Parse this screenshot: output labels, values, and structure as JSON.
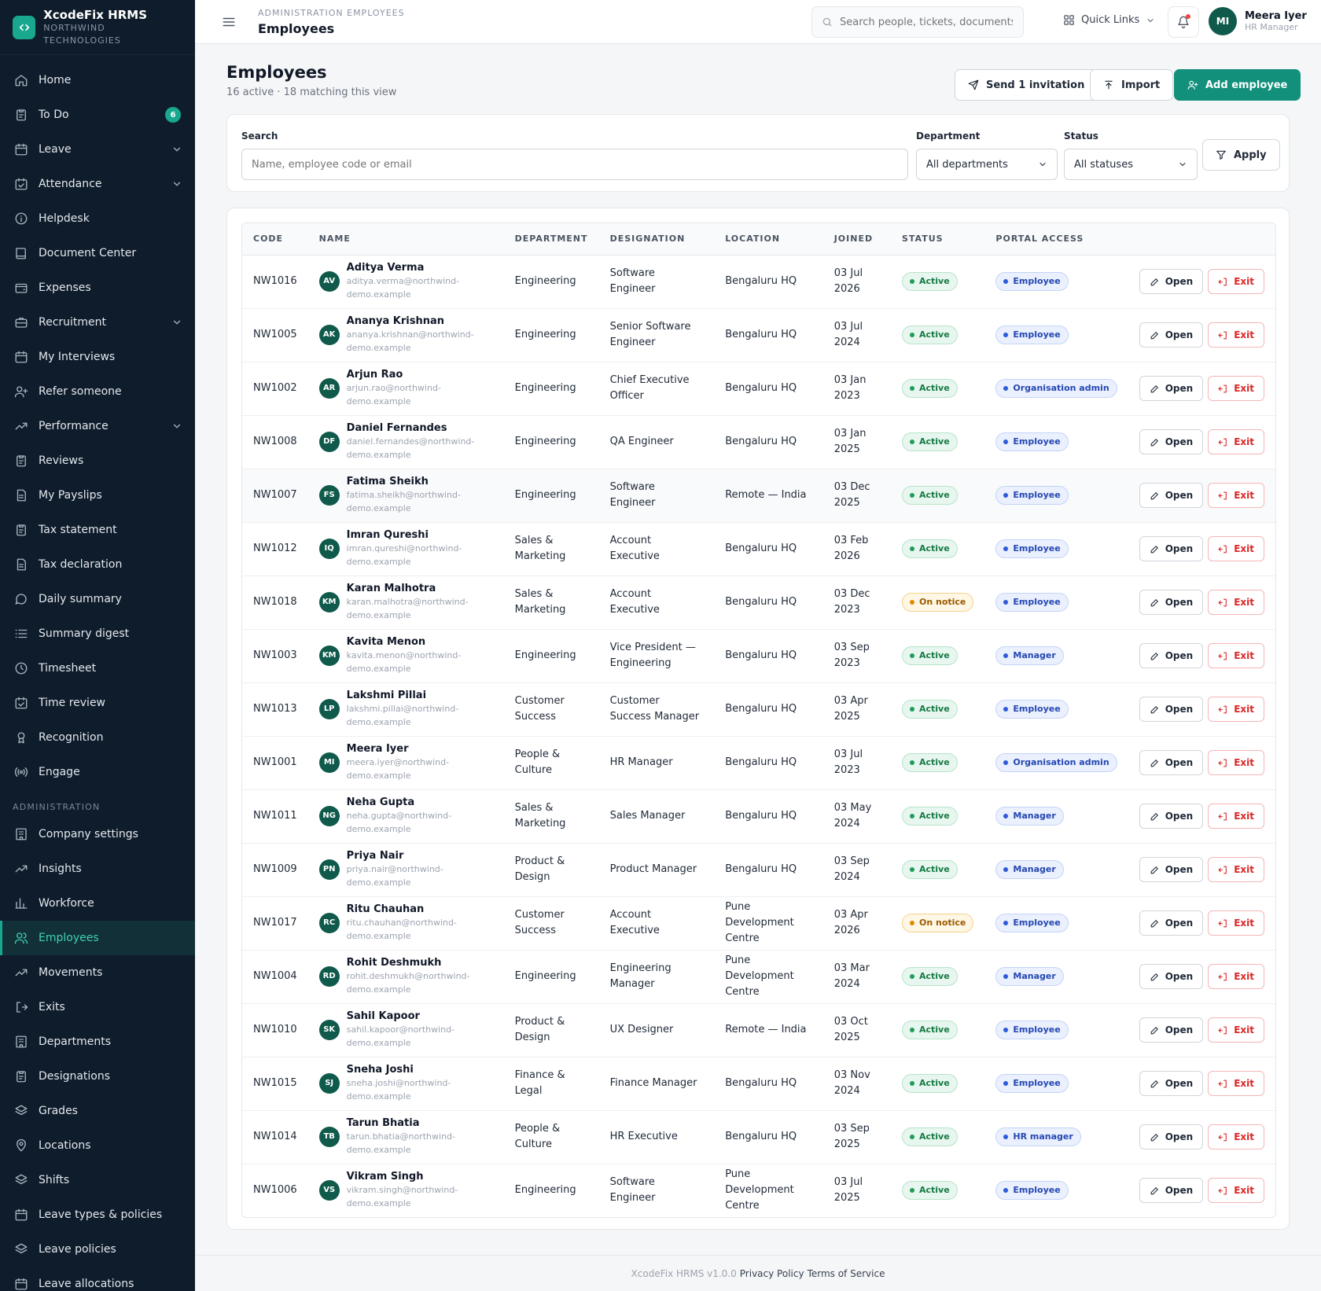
{
  "app": {
    "name": "XcodeFix HRMS",
    "company": "NORTHWIND TECHNOLOGIES"
  },
  "sidebar": {
    "items": [
      {
        "label": "Home",
        "icon": "home-icon"
      },
      {
        "label": "To Do",
        "icon": "clipboard-icon",
        "badge": "6"
      },
      {
        "label": "Leave",
        "icon": "calendar-icon",
        "chevron": true
      },
      {
        "label": "Attendance",
        "icon": "calendar-check-icon",
        "chevron": true
      },
      {
        "label": "Helpdesk",
        "icon": "info-icon"
      },
      {
        "label": "Document Center",
        "icon": "book-icon"
      },
      {
        "label": "Expenses",
        "icon": "wallet-icon"
      },
      {
        "label": "Recruitment",
        "icon": "briefcase-icon",
        "chevron": true
      },
      {
        "label": "My Interviews",
        "icon": "calendar-icon"
      },
      {
        "label": "Refer someone",
        "icon": "user-plus-icon"
      },
      {
        "label": "Performance",
        "icon": "trending-up-icon",
        "chevron": true
      },
      {
        "label": "Reviews",
        "icon": "clipboard-icon"
      },
      {
        "label": "My Payslips",
        "icon": "file-icon"
      },
      {
        "label": "Tax statement",
        "icon": "clipboard-icon"
      },
      {
        "label": "Tax declaration",
        "icon": "file-icon"
      },
      {
        "label": "Daily summary",
        "icon": "message-icon"
      },
      {
        "label": "Summary digest",
        "icon": "list-icon"
      },
      {
        "label": "Timesheet",
        "icon": "clock-icon"
      },
      {
        "label": "Time review",
        "icon": "calendar-check-icon"
      },
      {
        "label": "Recognition",
        "icon": "award-icon"
      },
      {
        "label": "Engage",
        "icon": "radio-icon"
      }
    ],
    "admin_section_label": "ADMINISTRATION",
    "admin_items": [
      {
        "label": "Company settings",
        "icon": "building-icon"
      },
      {
        "label": "Insights",
        "icon": "trending-up-icon"
      },
      {
        "label": "Workforce",
        "icon": "bar-chart-icon"
      },
      {
        "label": "Employees",
        "icon": "users-icon",
        "active": true
      },
      {
        "label": "Movements",
        "icon": "trending-up-icon"
      },
      {
        "label": "Exits",
        "icon": "log-out-icon"
      },
      {
        "label": "Departments",
        "icon": "building-icon"
      },
      {
        "label": "Designations",
        "icon": "clipboard-icon"
      },
      {
        "label": "Grades",
        "icon": "layers-icon"
      },
      {
        "label": "Locations",
        "icon": "map-pin-icon"
      },
      {
        "label": "Shifts",
        "icon": "layers-icon"
      },
      {
        "label": "Leave types & policies",
        "icon": "calendar-icon"
      },
      {
        "label": "Leave policies",
        "icon": "layers-icon"
      },
      {
        "label": "Leave allocations",
        "icon": "calendar-icon"
      }
    ]
  },
  "topbar": {
    "breadcrumb": "ADMINISTRATION  EMPLOYEES",
    "title": "Employees",
    "search_placeholder": "Search people, tickets, documents...",
    "quick_links": "Quick Links",
    "user": {
      "initials": "MI",
      "name": "Meera Iyer",
      "role": "HR Manager"
    }
  },
  "page": {
    "title": "Employees",
    "subtitle": "16 active · 18 matching this view",
    "send_invitation": "Send 1 invitation",
    "import": "Import",
    "add_employee": "Add employee"
  },
  "filters": {
    "search_label": "Search",
    "search_placeholder": "Name, employee code or email",
    "department_label": "Department",
    "department_value": "All departments",
    "status_label": "Status",
    "status_value": "All statuses",
    "apply": "Apply"
  },
  "table": {
    "columns": [
      "CODE",
      "NAME",
      "DEPARTMENT",
      "DESIGNATION",
      "LOCATION",
      "JOINED",
      "STATUS",
      "PORTAL ACCESS"
    ],
    "open_label": "Open",
    "exit_label": "Exit",
    "rows": [
      {
        "code": "NW1016",
        "initials": "AV",
        "name": "Aditya Verma",
        "email": "aditya.verma@northwind-demo.example",
        "department": "Engineering",
        "designation": "Software Engineer",
        "location": "Bengaluru HQ",
        "joined": "03 Jul 2026",
        "status": "Active",
        "access": "Employee"
      },
      {
        "code": "NW1005",
        "initials": "AK",
        "name": "Ananya Krishnan",
        "email": "ananya.krishnan@northwind-demo.example",
        "department": "Engineering",
        "designation": "Senior Software Engineer",
        "location": "Bengaluru HQ",
        "joined": "03 Jul 2024",
        "status": "Active",
        "access": "Employee"
      },
      {
        "code": "NW1002",
        "initials": "AR",
        "name": "Arjun Rao",
        "email": "arjun.rao@northwind-demo.example",
        "department": "Engineering",
        "designation": "Chief Executive Officer",
        "location": "Bengaluru HQ",
        "joined": "03 Jan 2023",
        "status": "Active",
        "access": "Organisation admin"
      },
      {
        "code": "NW1008",
        "initials": "DF",
        "name": "Daniel Fernandes",
        "email": "daniel.fernandes@northwind-demo.example",
        "department": "Engineering",
        "designation": "QA Engineer",
        "location": "Bengaluru HQ",
        "joined": "03 Jan 2025",
        "status": "Active",
        "access": "Employee"
      },
      {
        "code": "NW1007",
        "initials": "FS",
        "name": "Fatima Sheikh",
        "email": "fatima.sheikh@northwind-demo.example",
        "department": "Engineering",
        "designation": "Software Engineer",
        "location": "Remote — India",
        "joined": "03 Dec 2025",
        "status": "Active",
        "access": "Employee"
      },
      {
        "code": "NW1012",
        "initials": "IQ",
        "name": "Imran Qureshi",
        "email": "imran.qureshi@northwind-demo.example",
        "department": "Sales & Marketing",
        "designation": "Account Executive",
        "location": "Bengaluru HQ",
        "joined": "03 Feb 2026",
        "status": "Active",
        "access": "Employee"
      },
      {
        "code": "NW1018",
        "initials": "KM",
        "name": "Karan Malhotra",
        "email": "karan.malhotra@northwind-demo.example",
        "department": "Sales & Marketing",
        "designation": "Account Executive",
        "location": "Bengaluru HQ",
        "joined": "03 Dec 2023",
        "status": "On notice",
        "access": "Employee"
      },
      {
        "code": "NW1003",
        "initials": "KM",
        "name": "Kavita Menon",
        "email": "kavita.menon@northwind-demo.example",
        "department": "Engineering",
        "designation": "Vice President — Engineering",
        "location": "Bengaluru HQ",
        "joined": "03 Sep 2023",
        "status": "Active",
        "access": "Manager"
      },
      {
        "code": "NW1013",
        "initials": "LP",
        "name": "Lakshmi Pillai",
        "email": "lakshmi.pillai@northwind-demo.example",
        "department": "Customer Success",
        "designation": "Customer Success Manager",
        "location": "Bengaluru HQ",
        "joined": "03 Apr 2025",
        "status": "Active",
        "access": "Employee"
      },
      {
        "code": "NW1001",
        "initials": "MI",
        "name": "Meera Iyer",
        "email": "meera.iyer@northwind-demo.example",
        "department": "People & Culture",
        "designation": "HR Manager",
        "location": "Bengaluru HQ",
        "joined": "03 Jul 2023",
        "status": "Active",
        "access": "Organisation admin"
      },
      {
        "code": "NW1011",
        "initials": "NG",
        "name": "Neha Gupta",
        "email": "neha.gupta@northwind-demo.example",
        "department": "Sales & Marketing",
        "designation": "Sales Manager",
        "location": "Bengaluru HQ",
        "joined": "03 May 2024",
        "status": "Active",
        "access": "Manager"
      },
      {
        "code": "NW1009",
        "initials": "PN",
        "name": "Priya Nair",
        "email": "priya.nair@northwind-demo.example",
        "department": "Product & Design",
        "designation": "Product Manager",
        "location": "Bengaluru HQ",
        "joined": "03 Sep 2024",
        "status": "Active",
        "access": "Manager"
      },
      {
        "code": "NW1017",
        "initials": "RC",
        "name": "Ritu Chauhan",
        "email": "ritu.chauhan@northwind-demo.example",
        "department": "Customer Success",
        "designation": "Account Executive",
        "location": "Pune Development Centre",
        "joined": "03 Apr 2026",
        "status": "On notice",
        "access": "Employee"
      },
      {
        "code": "NW1004",
        "initials": "RD",
        "name": "Rohit Deshmukh",
        "email": "rohit.deshmukh@northwind-demo.example",
        "department": "Engineering",
        "designation": "Engineering Manager",
        "location": "Pune Development Centre",
        "joined": "03 Mar 2024",
        "status": "Active",
        "access": "Manager"
      },
      {
        "code": "NW1010",
        "initials": "SK",
        "name": "Sahil Kapoor",
        "email": "sahil.kapoor@northwind-demo.example",
        "department": "Product & Design",
        "designation": "UX Designer",
        "location": "Remote — India",
        "joined": "03 Oct 2025",
        "status": "Active",
        "access": "Employee"
      },
      {
        "code": "NW1015",
        "initials": "SJ",
        "name": "Sneha Joshi",
        "email": "sneha.joshi@northwind-demo.example",
        "department": "Finance & Legal",
        "designation": "Finance Manager",
        "location": "Bengaluru HQ",
        "joined": "03 Nov 2024",
        "status": "Active",
        "access": "Employee"
      },
      {
        "code": "NW1014",
        "initials": "TB",
        "name": "Tarun Bhatia",
        "email": "tarun.bhatia@northwind-demo.example",
        "department": "People & Culture",
        "designation": "HR Executive",
        "location": "Bengaluru HQ",
        "joined": "03 Sep 2025",
        "status": "Active",
        "access": "HR manager"
      },
      {
        "code": "NW1006",
        "initials": "VS",
        "name": "Vikram Singh",
        "email": "vikram.singh@northwind-demo.example",
        "department": "Engineering",
        "designation": "Software Engineer",
        "location": "Pune Development Centre",
        "joined": "03 Jul 2025",
        "status": "Active",
        "access": "Employee"
      }
    ]
  },
  "footer": {
    "version": "XcodeFix HRMS v1.0.0",
    "privacy": "Privacy Policy",
    "terms": "Terms of Service"
  },
  "colors": {
    "accent": "#12907b",
    "sidebar_bg": "#0f1c2b",
    "active_status": "#1f9d57",
    "notice_status": "#e08a00",
    "access": "#2f5bd8",
    "exit": "#dc2626"
  }
}
